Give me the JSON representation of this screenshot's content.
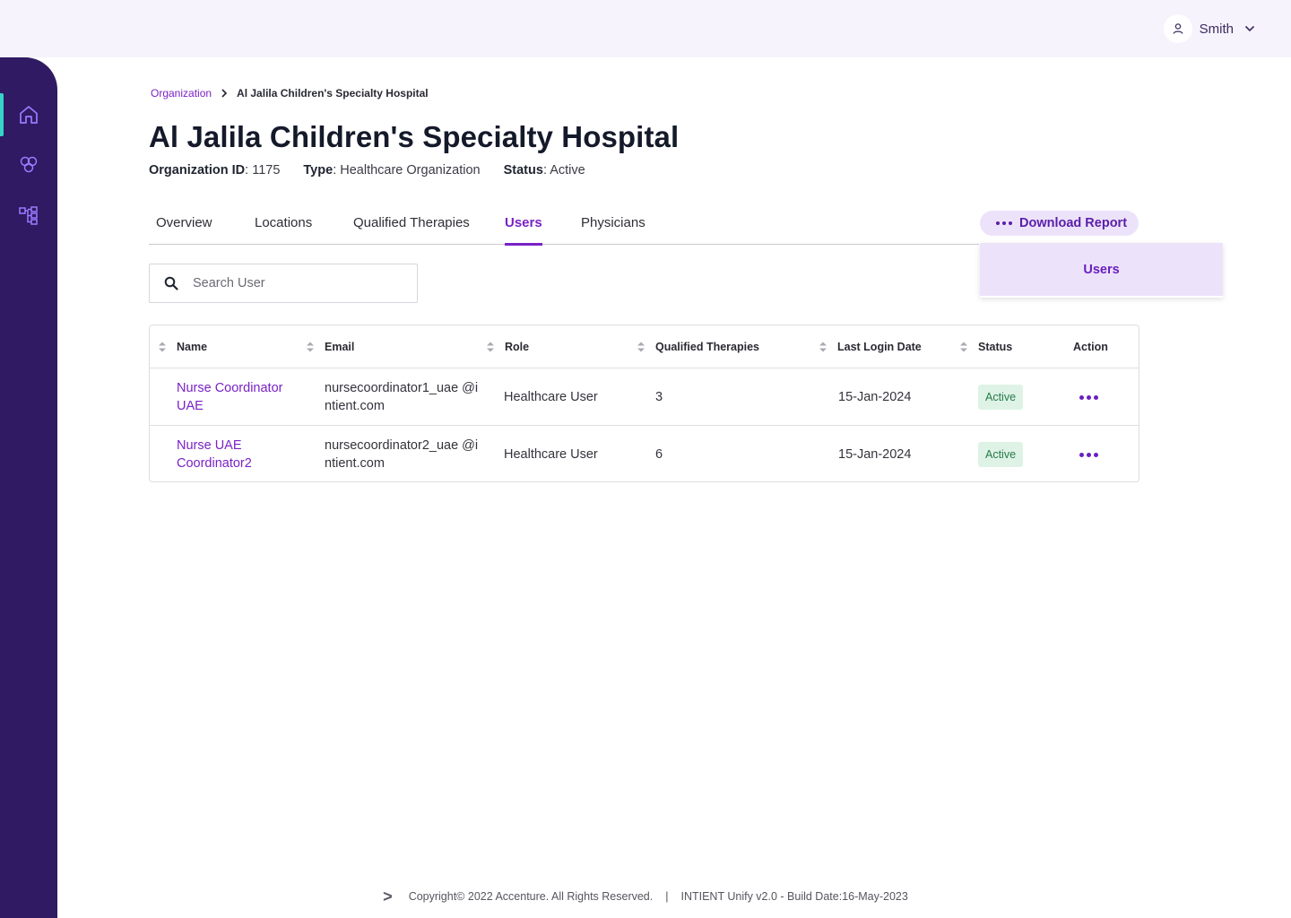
{
  "header": {
    "user_name": "Smith",
    "user_icon": "user-icon",
    "menu_icon": "chevron-down-icon"
  },
  "sidebar": {
    "items": [
      {
        "icon": "home-icon",
        "active": true
      },
      {
        "icon": "molecule-icon",
        "active": false
      },
      {
        "icon": "hierarchy-icon",
        "active": false
      }
    ]
  },
  "breadcrumb": {
    "root": "Organization",
    "current": "Al Jalila Children's Specialty Hospital"
  },
  "page": {
    "title": "Al Jalila Children's Specialty Hospital",
    "org_id_label": "Organization ID",
    "org_id": ": 1175",
    "type_label": "Type",
    "type": ": Healthcare Organization",
    "status_label": "Status",
    "status": ": Active"
  },
  "tabs": [
    {
      "label": "Overview",
      "active": false
    },
    {
      "label": "Locations",
      "active": false
    },
    {
      "label": "Qualified Therapies",
      "active": false
    },
    {
      "label": "Users",
      "active": true
    },
    {
      "label": "Physicians",
      "active": false
    }
  ],
  "download": {
    "label": "Download Report",
    "menu_items": [
      "Users"
    ]
  },
  "search": {
    "placeholder": "Search User",
    "value": ""
  },
  "table": {
    "columns": [
      "Name",
      "Email",
      "Role",
      "Qualified Therapies",
      "Last Login Date",
      "Status",
      "Action"
    ],
    "rows": [
      {
        "name": "Nurse Coordinator UAE",
        "email": "nursecoordinator1_uae @intient.com",
        "role": "Healthcare User",
        "therapies": "3",
        "last_login": "15-Jan-2024",
        "status": "Active"
      },
      {
        "name": "Nurse UAE Coordinator2",
        "email": "nursecoordinator2_uae @intient.com",
        "role": "Healthcare User",
        "therapies": "6",
        "last_login": "15-Jan-2024",
        "status": "Active"
      }
    ]
  },
  "footer": {
    "logo": ">",
    "copyright": "Copyright© 2022 Accenture. All Rights Reserved.",
    "separator": "|",
    "build": "INTIENT Unify v2.0 - Build Date:16-May-2023"
  },
  "colors": {
    "brand": "#7a22c6",
    "sidebar": "#2f1a63",
    "accent": "#35d3c8",
    "active_badge": "#def3e6"
  }
}
